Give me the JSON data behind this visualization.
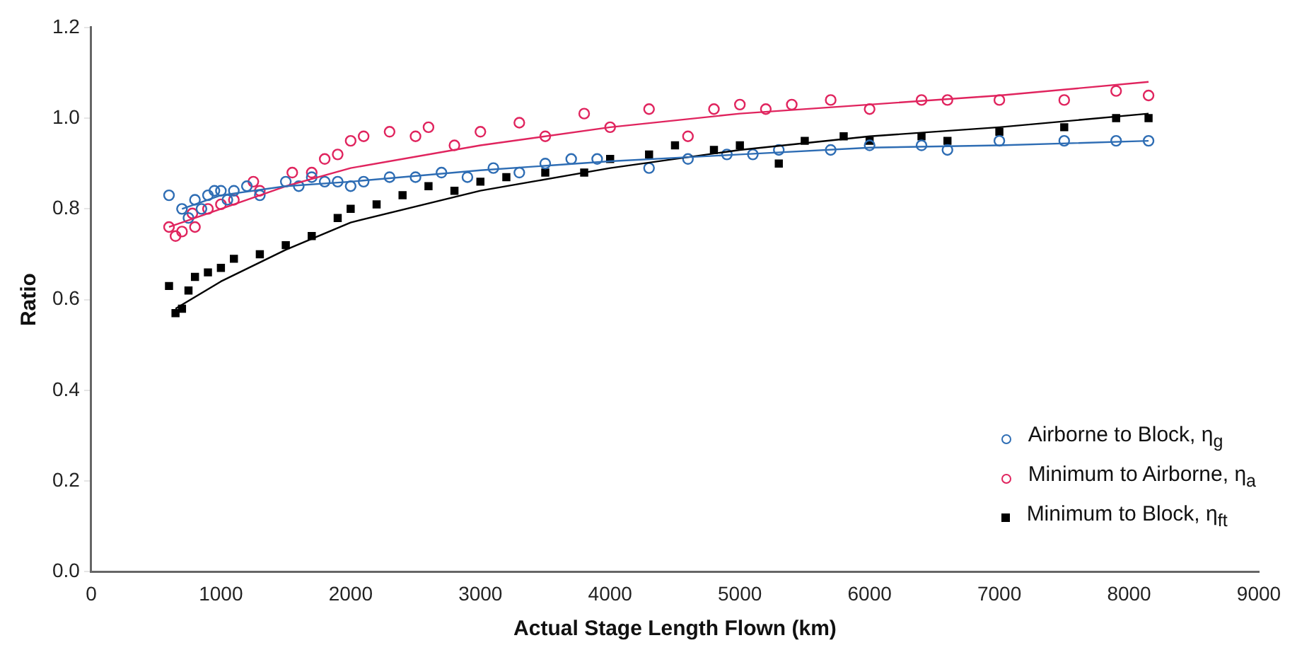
{
  "chart_data": {
    "type": "scatter",
    "xlabel": "Actual Stage Length Flown (km)",
    "ylabel": "Ratio",
    "xlim": [
      0,
      9000
    ],
    "xticks": [
      0,
      1000,
      2000,
      3000,
      4000,
      5000,
      6000,
      7000,
      8000,
      9000
    ],
    "ylim": [
      0,
      1.2
    ],
    "yticks": [
      {
        "value": 0,
        "label": "0.0"
      },
      {
        "value": 0.2,
        "label": "0.2"
      },
      {
        "value": 0.4,
        "label": "0.4"
      },
      {
        "value": 0.6,
        "label": "0.6"
      },
      {
        "value": 0.8,
        "label": "0.8"
      },
      {
        "value": 1,
        "label": "1.0"
      },
      {
        "value": 1.2,
        "label": "1.2"
      }
    ],
    "grid": false,
    "legend": "bottom right",
    "series": [
      {
        "name": "Airborne to Block, η$_{g}$",
        "type": "scatter",
        "marker": "circle",
        "color": "#2e6db4",
        "x": [
          600,
          700,
          750,
          800,
          850,
          900,
          950,
          1000,
          1050,
          1100,
          1200,
          1300,
          1500,
          1600,
          1700,
          1800,
          1900,
          2000,
          2100,
          2300,
          2500,
          2700,
          2900,
          3100,
          3300,
          3500,
          3700,
          3900,
          4300,
          4600,
          4900,
          5100,
          5300,
          5700,
          6000,
          6400,
          6600,
          7000,
          7500,
          7900,
          8150
        ],
        "values": [
          0.83,
          0.8,
          0.78,
          0.82,
          0.8,
          0.83,
          0.84,
          0.84,
          0.82,
          0.84,
          0.85,
          0.83,
          0.86,
          0.85,
          0.87,
          0.86,
          0.86,
          0.85,
          0.86,
          0.87,
          0.87,
          0.88,
          0.87,
          0.89,
          0.88,
          0.9,
          0.91,
          0.91,
          0.89,
          0.91,
          0.92,
          0.92,
          0.93,
          0.93,
          0.94,
          0.94,
          0.93,
          0.95,
          0.95,
          0.95,
          0.95
        ]
      },
      {
        "name": "Minimum to Airborne, η$_{a}$",
        "type": "scatter",
        "marker": "circle",
        "color": "#e0245e",
        "x": [
          600,
          650,
          700,
          780,
          800,
          900,
          1000,
          1100,
          1250,
          1300,
          1550,
          1700,
          1800,
          1900,
          2000,
          2100,
          2300,
          2500,
          2600,
          2800,
          3000,
          3300,
          3500,
          3800,
          4000,
          4300,
          4600,
          4800,
          5000,
          5200,
          5400,
          5700,
          6000,
          6400,
          6600,
          7000,
          7500,
          7900,
          8150
        ],
        "values": [
          0.76,
          0.74,
          0.75,
          0.79,
          0.76,
          0.8,
          0.81,
          0.82,
          0.86,
          0.84,
          0.88,
          0.88,
          0.91,
          0.92,
          0.95,
          0.96,
          0.97,
          0.96,
          0.98,
          0.94,
          0.97,
          0.99,
          0.96,
          1.01,
          0.98,
          1.02,
          0.96,
          1.02,
          1.03,
          1.02,
          1.03,
          1.04,
          1.02,
          1.04,
          1.04,
          1.04,
          1.04,
          1.06,
          1.05
        ]
      },
      {
        "name": "Minimum to Block, η$_{ft}$",
        "type": "scatter",
        "marker": "square",
        "color": "#000000",
        "x": [
          600,
          650,
          700,
          750,
          800,
          900,
          1000,
          1100,
          1300,
          1500,
          1700,
          1900,
          2000,
          2200,
          2400,
          2600,
          2800,
          3000,
          3200,
          3500,
          3800,
          4000,
          4300,
          4500,
          4800,
          5000,
          5300,
          5500,
          5800,
          6000,
          6400,
          6600,
          7000,
          7500,
          7900,
          8150
        ],
        "values": [
          0.63,
          0.57,
          0.58,
          0.62,
          0.65,
          0.66,
          0.67,
          0.69,
          0.7,
          0.72,
          0.74,
          0.78,
          0.8,
          0.81,
          0.83,
          0.85,
          0.84,
          0.86,
          0.87,
          0.88,
          0.88,
          0.91,
          0.92,
          0.94,
          0.93,
          0.94,
          0.9,
          0.95,
          0.96,
          0.95,
          0.96,
          0.95,
          0.97,
          0.98,
          1.0,
          1.0
        ]
      },
      {
        "type": "line",
        "marker": "none",
        "color": "#2e6db4",
        "x": [
          700,
          1000,
          1500,
          2000,
          3000,
          4000,
          5000,
          6000,
          7000,
          8150
        ],
        "values": [
          0.8,
          0.83,
          0.85,
          0.86,
          0.885,
          0.905,
          0.92,
          0.935,
          0.94,
          0.95
        ]
      },
      {
        "type": "line",
        "marker": "none",
        "color": "#e0245e",
        "x": [
          600,
          1000,
          1500,
          2000,
          3000,
          4000,
          5000,
          6000,
          7000,
          8150
        ],
        "values": [
          0.76,
          0.8,
          0.85,
          0.89,
          0.94,
          0.98,
          1.01,
          1.03,
          1.05,
          1.08
        ]
      },
      {
        "type": "line",
        "marker": "none",
        "color": "#000000",
        "x": [
          650,
          1000,
          1500,
          2000,
          3000,
          4000,
          5000,
          6000,
          7000,
          8150
        ],
        "values": [
          0.58,
          0.64,
          0.71,
          0.77,
          0.84,
          0.89,
          0.93,
          0.96,
          0.98,
          1.01
        ]
      }
    ]
  }
}
